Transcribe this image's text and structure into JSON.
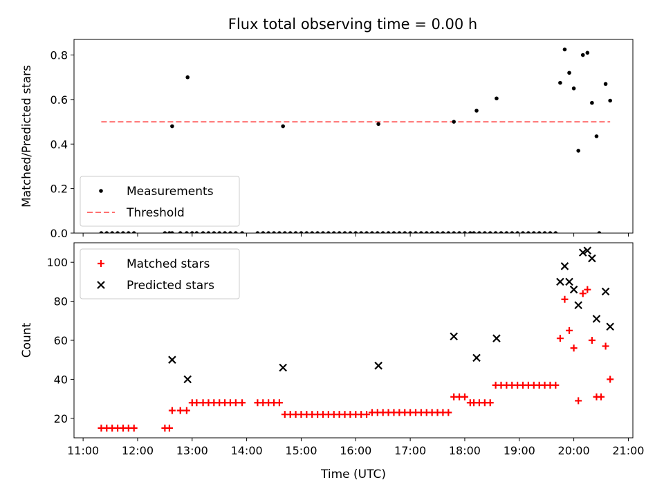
{
  "chart_data": [
    {
      "type": "scatter",
      "title": "Flux total observing time = 0.00 h",
      "xlabel": "",
      "ylabel": "Matched/Predicted stars",
      "xlim": [
        "10:50",
        "21:05"
      ],
      "ylim": [
        0,
        0.87
      ],
      "xticks": [
        "11:00",
        "12:00",
        "13:00",
        "14:00",
        "15:00",
        "16:00",
        "17:00",
        "18:00",
        "19:00",
        "20:00",
        "21:00"
      ],
      "yticks": [
        "0.0",
        "0.2",
        "0.4",
        "0.6",
        "0.8"
      ],
      "legend_position": "lower-left",
      "threshold": {
        "name": "Threshold",
        "y": 0.5,
        "x": [
          "11:20",
          "20:40"
        ],
        "color": "#ff7070"
      },
      "series": [
        {
          "name": "Measurements",
          "color": "#000000",
          "x": [
            "11:20",
            "11:26",
            "11:32",
            "11:38",
            "11:44",
            "11:50",
            "11:56",
            "12:30",
            "12:35",
            "12:38",
            "12:47",
            "12:54",
            "13:00",
            "13:05",
            "13:12",
            "13:18",
            "13:24",
            "13:30",
            "13:36",
            "13:42",
            "13:48",
            "13:55",
            "14:12",
            "14:18",
            "14:24",
            "14:30",
            "14:36",
            "14:42",
            "14:48",
            "14:54",
            "15:00",
            "15:06",
            "15:12",
            "15:18",
            "15:24",
            "15:30",
            "15:36",
            "15:42",
            "15:48",
            "15:54",
            "16:00",
            "16:06",
            "16:12",
            "16:18",
            "16:24",
            "16:30",
            "16:36",
            "16:42",
            "16:48",
            "16:54",
            "17:00",
            "17:06",
            "17:12",
            "17:18",
            "17:24",
            "17:30",
            "17:36",
            "17:42",
            "17:48",
            "17:54",
            "18:00",
            "18:06",
            "18:10",
            "18:16",
            "18:22",
            "18:28",
            "18:34",
            "18:40",
            "18:46",
            "18:52",
            "18:58",
            "19:04",
            "19:10",
            "19:16",
            "19:22",
            "19:28",
            "19:34",
            "19:40",
            "20:28",
            "12:38",
            "12:55",
            "14:40",
            "16:25",
            "17:48",
            "18:13",
            "18:35",
            "19:45",
            "19:50",
            "19:55",
            "20:00",
            "20:05",
            "20:10",
            "20:15",
            "20:20",
            "20:25",
            "20:35",
            "20:40"
          ],
          "y": [
            0,
            0,
            0,
            0,
            0,
            0,
            0,
            0,
            0,
            0,
            0,
            0,
            0,
            0,
            0,
            0,
            0,
            0,
            0,
            0,
            0,
            0,
            0,
            0,
            0,
            0,
            0,
            0,
            0,
            0,
            0,
            0,
            0,
            0,
            0,
            0,
            0,
            0,
            0,
            0,
            0,
            0,
            0,
            0,
            0,
            0,
            0,
            0,
            0,
            0,
            0,
            0,
            0,
            0,
            0,
            0,
            0,
            0,
            0,
            0,
            0,
            0,
            0,
            0,
            0,
            0,
            0,
            0,
            0,
            0,
            0,
            0,
            0,
            0,
            0,
            0,
            0,
            0,
            0,
            0.48,
            0.7,
            0.48,
            0.49,
            0.5,
            0.55,
            0.605,
            0.675,
            0.825,
            0.72,
            0.65,
            0.37,
            0.8,
            0.81,
            0.585,
            0.435,
            0.67,
            0.595
          ]
        }
      ]
    },
    {
      "type": "scatter",
      "title": "",
      "xlabel": "Time (UTC)",
      "ylabel": "Count",
      "xlim": [
        "10:50",
        "21:05"
      ],
      "ylim": [
        10,
        110
      ],
      "xticks": [
        "11:00",
        "12:00",
        "13:00",
        "14:00",
        "15:00",
        "16:00",
        "17:00",
        "18:00",
        "19:00",
        "20:00",
        "21:00"
      ],
      "yticks": [
        "20",
        "40",
        "60",
        "80",
        "100"
      ],
      "legend_position": "upper-left",
      "series": [
        {
          "name": "Matched stars",
          "color": "#ff0000",
          "marker": "plus",
          "x": [
            "11:20",
            "11:26",
            "11:32",
            "11:38",
            "11:44",
            "11:50",
            "11:56",
            "12:30",
            "12:35",
            "12:38",
            "12:47",
            "12:54",
            "13:00",
            "13:05",
            "13:12",
            "13:18",
            "13:24",
            "13:30",
            "13:36",
            "13:42",
            "13:48",
            "13:55",
            "14:12",
            "14:18",
            "14:24",
            "14:30",
            "14:36",
            "14:42",
            "14:48",
            "14:54",
            "15:00",
            "15:06",
            "15:12",
            "15:18",
            "15:24",
            "15:30",
            "15:36",
            "15:42",
            "15:48",
            "15:54",
            "16:00",
            "16:06",
            "16:12",
            "16:18",
            "16:24",
            "16:30",
            "16:36",
            "16:42",
            "16:48",
            "16:54",
            "17:00",
            "17:06",
            "17:12",
            "17:18",
            "17:24",
            "17:30",
            "17:36",
            "17:42",
            "17:48",
            "17:54",
            "18:00",
            "18:06",
            "18:10",
            "18:16",
            "18:22",
            "18:28",
            "18:34",
            "18:40",
            "18:46",
            "18:52",
            "18:58",
            "19:04",
            "19:10",
            "19:16",
            "19:22",
            "19:28",
            "19:34",
            "19:40",
            "19:45",
            "19:50",
            "19:55",
            "20:00",
            "20:05",
            "20:10",
            "20:15",
            "20:20",
            "20:25",
            "20:30",
            "20:35",
            "20:40"
          ],
          "y": [
            15,
            15,
            15,
            15,
            15,
            15,
            15,
            15,
            15,
            24,
            24,
            24,
            28,
            28,
            28,
            28,
            28,
            28,
            28,
            28,
            28,
            28,
            28,
            28,
            28,
            28,
            28,
            22,
            22,
            22,
            22,
            22,
            22,
            22,
            22,
            22,
            22,
            22,
            22,
            22,
            22,
            22,
            22,
            23,
            23,
            23,
            23,
            23,
            23,
            23,
            23,
            23,
            23,
            23,
            23,
            23,
            23,
            23,
            31,
            31,
            31,
            28,
            28,
            28,
            28,
            28,
            37,
            37,
            37,
            37,
            37,
            37,
            37,
            37,
            37,
            37,
            37,
            37,
            61,
            81,
            65,
            56,
            29,
            84,
            86,
            60,
            31,
            31,
            57,
            40
          ]
        },
        {
          "name": "Predicted stars",
          "color": "#000000",
          "marker": "x",
          "x": [
            "12:38",
            "12:55",
            "14:40",
            "16:25",
            "17:48",
            "18:13",
            "18:35",
            "19:45",
            "19:50",
            "19:55",
            "20:00",
            "20:05",
            "20:10",
            "20:15",
            "20:20",
            "20:25",
            "20:35",
            "20:40"
          ],
          "y": [
            50,
            40,
            46,
            47,
            62,
            51,
            61,
            90,
            98,
            90,
            86,
            78,
            105,
            106,
            102,
            71,
            85,
            67
          ]
        }
      ]
    }
  ]
}
